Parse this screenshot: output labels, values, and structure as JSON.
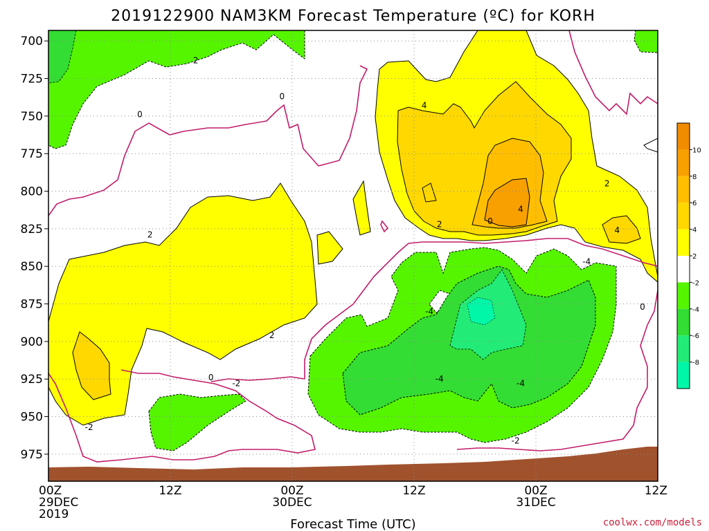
{
  "chart_data": {
    "type": "heatmap",
    "title": "2019122900 NAM3KM Forecast Temperature (ºC) for KORH",
    "xlabel": "Forecast Time (UTC)",
    "ylabel": "",
    "credit": "coolwx.com/models",
    "x_ticks": [
      {
        "hour": 0,
        "line1": "00Z",
        "line2": "29DEC",
        "line3": "2019"
      },
      {
        "hour": 12,
        "line1": "12Z",
        "line2": "",
        "line3": ""
      },
      {
        "hour": 24,
        "line1": "00Z",
        "line2": "30DEC",
        "line3": ""
      },
      {
        "hour": 36,
        "line1": "12Z",
        "line2": "",
        "line3": ""
      },
      {
        "hour": 48,
        "line1": "00Z",
        "line2": "31DEC",
        "line3": ""
      },
      {
        "hour": 60,
        "line1": "12Z",
        "line2": "",
        "line3": ""
      }
    ],
    "xlim_hours": [
      0,
      60
    ],
    "y_ticks": [
      "700",
      "725",
      "750",
      "775",
      "800",
      "825",
      "850",
      "875",
      "900",
      "925",
      "950",
      "975"
    ],
    "ylim_hpa": [
      993,
      693
    ],
    "grid": true,
    "colorbar": {
      "position": "right",
      "ticks": [
        "10",
        "8",
        "6",
        "4",
        "2",
        "-2",
        "-4",
        "-6",
        "-8"
      ],
      "bands": [
        {
          "from": 12,
          "to": 10,
          "color": "#f08c00"
        },
        {
          "from": 10,
          "to": 8,
          "color": "#f8a000"
        },
        {
          "from": 8,
          "to": 6,
          "color": "#ffbe00"
        },
        {
          "from": 6,
          "to": 4,
          "color": "#ffd800"
        },
        {
          "from": 4,
          "to": 2,
          "color": "#ffff00"
        },
        {
          "from": 2,
          "to": -2,
          "color": "#ffffff"
        },
        {
          "from": -2,
          "to": -4,
          "color": "#55f500"
        },
        {
          "from": -4,
          "to": -6,
          "color": "#33dd33"
        },
        {
          "from": -6,
          "to": -8,
          "color": "#22ec77"
        },
        {
          "from": -8,
          "to": -10,
          "color": "#00f7a8"
        }
      ]
    },
    "colors": {
      "ground": "#a0522d",
      "zero_isotherm": "#c21b6a",
      "grid": "#888888"
    },
    "contour_labels": [
      {
        "text": "2",
        "hour": 14.5,
        "hpa": 713
      },
      {
        "text": "0",
        "hour": 9.0,
        "hpa": 749
      },
      {
        "text": "0",
        "hour": 23.0,
        "hpa": 737
      },
      {
        "text": "4",
        "hour": 37.0,
        "hpa": 743
      },
      {
        "text": "2",
        "hour": 10.0,
        "hpa": 829
      },
      {
        "text": "2",
        "hour": 55.0,
        "hpa": 795
      },
      {
        "text": "2",
        "hour": 38.5,
        "hpa": 822
      },
      {
        "text": "0",
        "hour": 43.5,
        "hpa": 820
      },
      {
        "text": "4",
        "hour": 46.5,
        "hpa": 812
      },
      {
        "text": "4",
        "hour": 56.0,
        "hpa": 826
      },
      {
        "text": "-4",
        "hour": 53.0,
        "hpa": 847
      },
      {
        "text": "0",
        "hour": 58.5,
        "hpa": 877
      },
      {
        "text": "-4",
        "hour": 37.5,
        "hpa": 880
      },
      {
        "text": "2",
        "hour": 22.0,
        "hpa": 896
      },
      {
        "text": "0",
        "hour": 16.0,
        "hpa": 924
      },
      {
        "text": "-2",
        "hour": 18.5,
        "hpa": 928
      },
      {
        "text": "-4",
        "hour": 38.5,
        "hpa": 925
      },
      {
        "text": "-4",
        "hour": 46.5,
        "hpa": 928
      },
      {
        "text": "-2",
        "hour": 4.0,
        "hpa": 957
      },
      {
        "text": "-2",
        "hour": 46.0,
        "hpa": 966
      }
    ]
  }
}
